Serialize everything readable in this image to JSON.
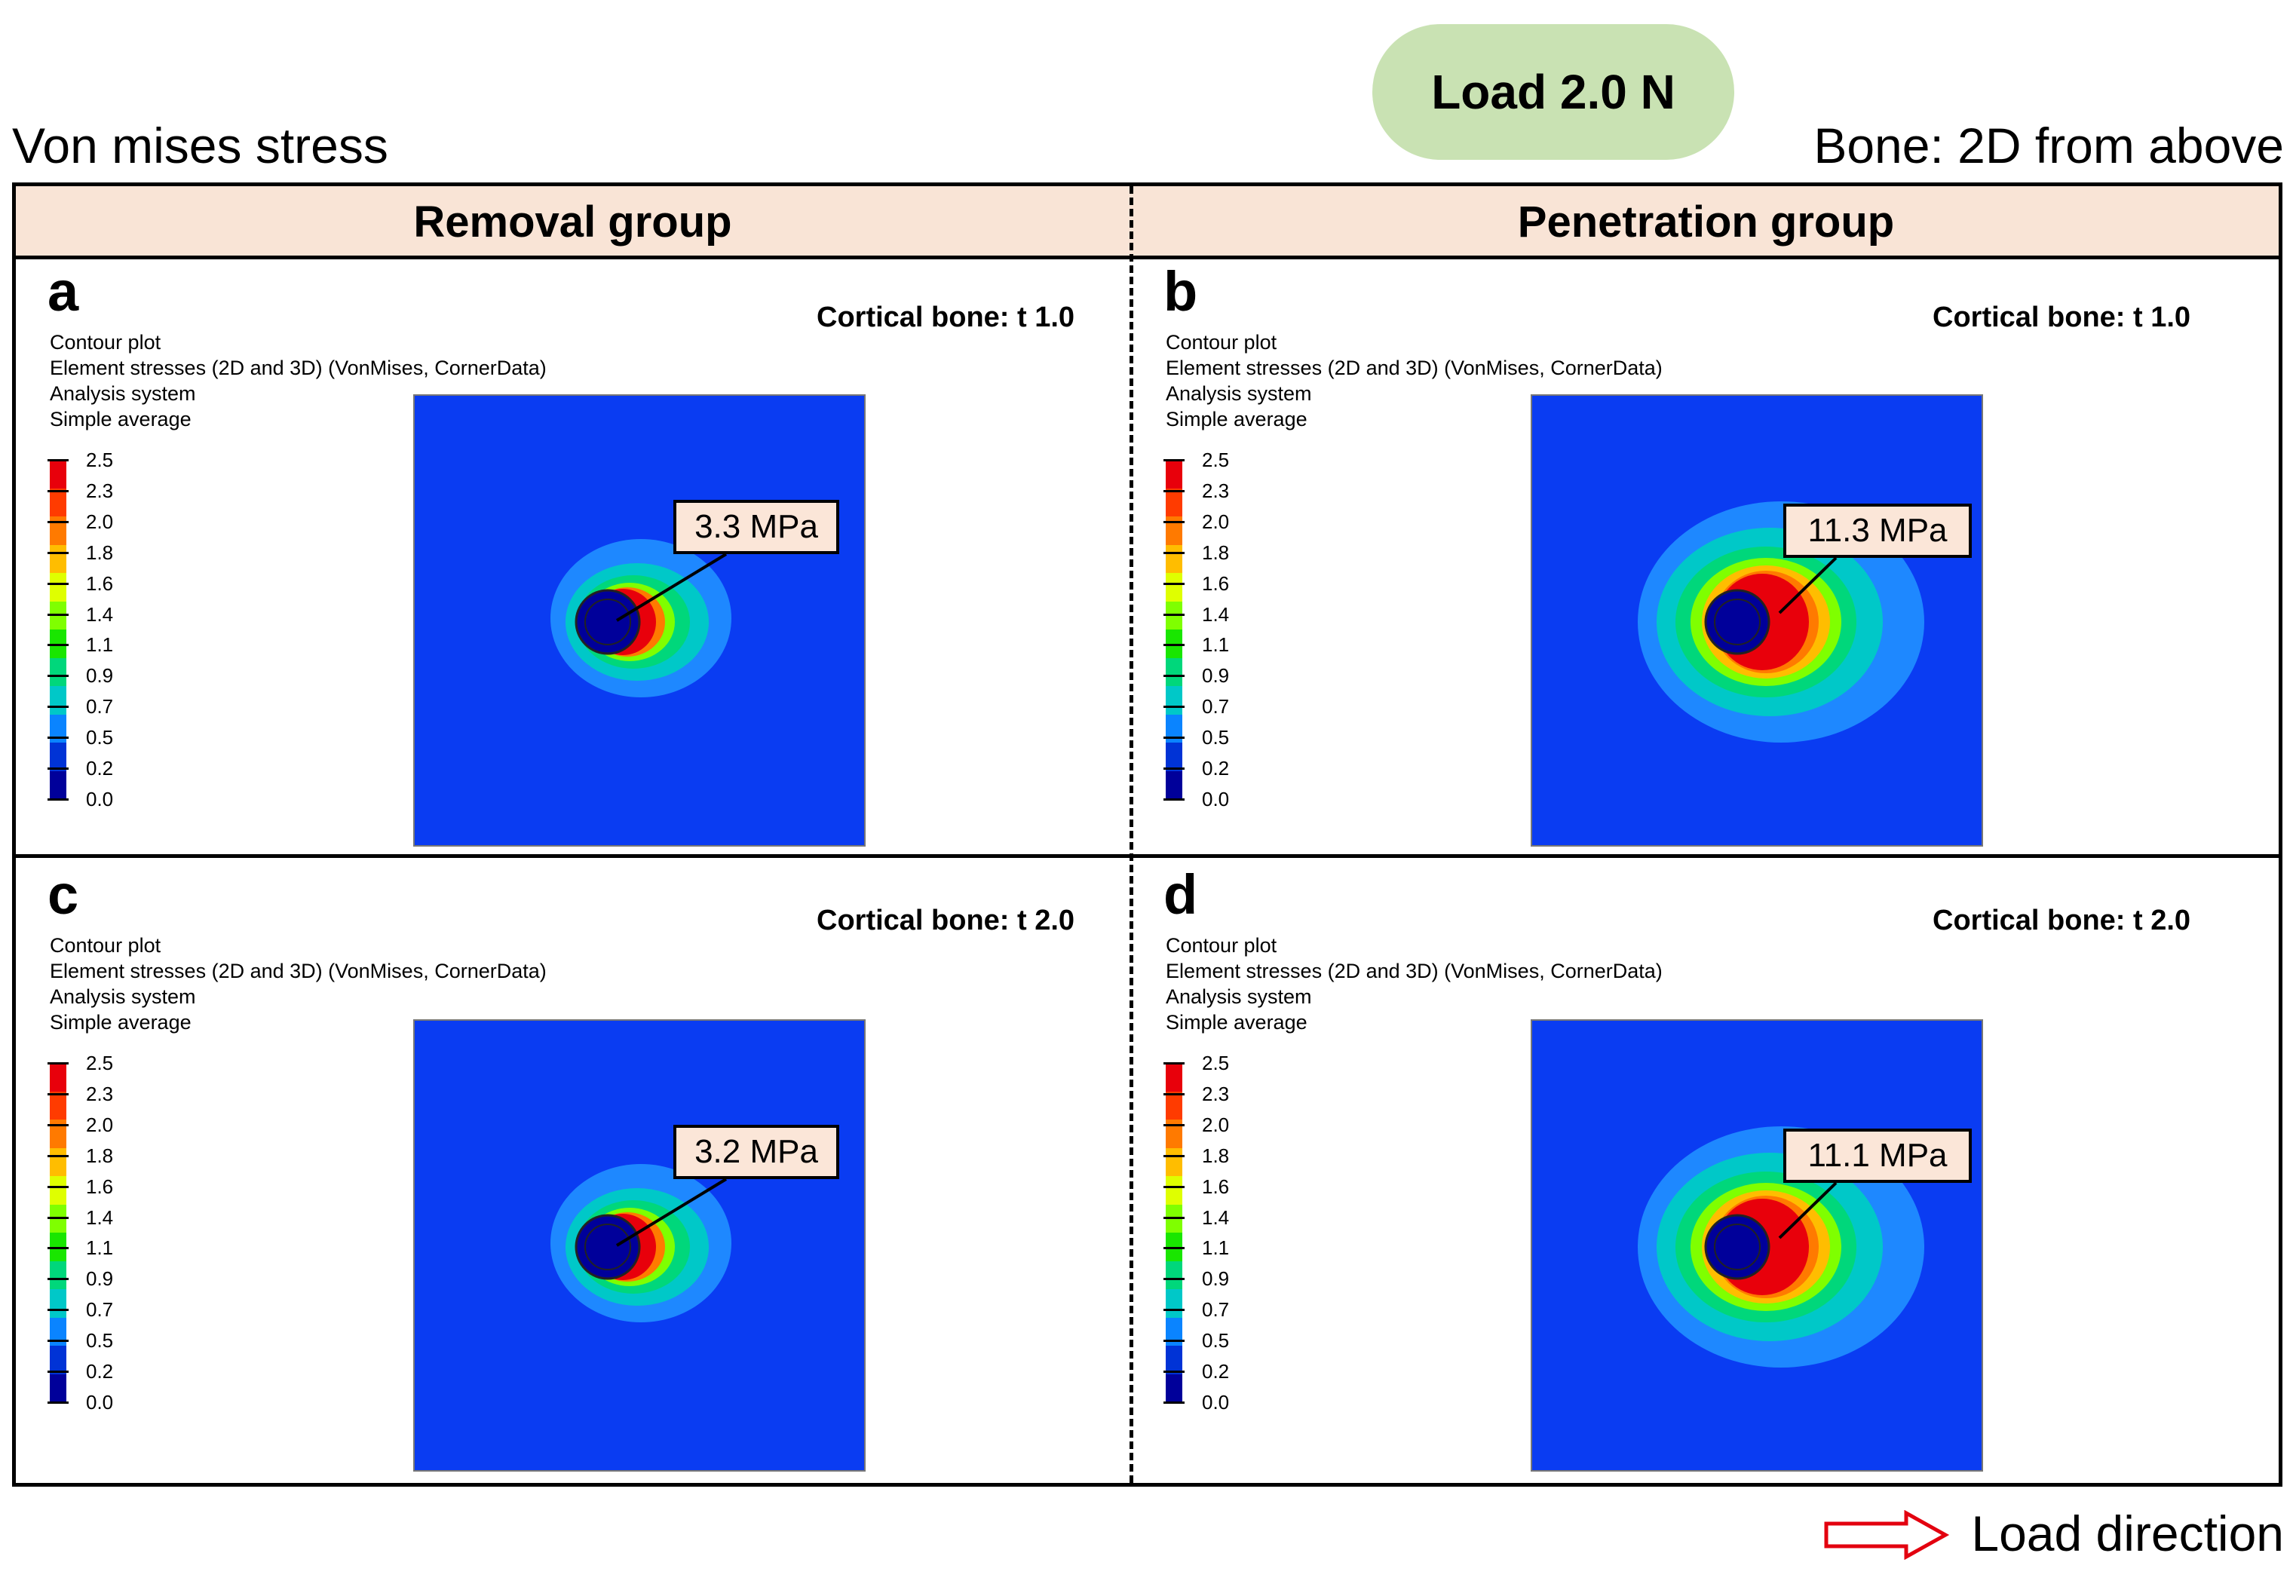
{
  "load_label": "Load 2.0 N",
  "stress_title": "Von mises stress",
  "view_label": "Bone: 2D from above",
  "columns": [
    "Removal group",
    "Penetration group"
  ],
  "info_lines": [
    "Contour plot",
    "Element stresses (2D and 3D) (VonMises, CornerData)",
    "Analysis system",
    "Simple average"
  ],
  "legend_values": [
    "2.5",
    "2.3",
    "2.0",
    "1.8",
    "1.6",
    "1.4",
    "1.1",
    "0.9",
    "0.7",
    "0.5",
    "0.2",
    "0.0"
  ],
  "legend_colors": [
    "#e8000b",
    "#ff3b00",
    "#ff7a00",
    "#ffbd00",
    "#dfff00",
    "#7fff00",
    "#19e600",
    "#00d77b",
    "#00c8c8",
    "#0a84ff",
    "#0033d6",
    "#00009a"
  ],
  "panels": [
    {
      "letter": "a",
      "cortical": "Cortical bone: t 1.0",
      "max_stress": "3.3 MPa"
    },
    {
      "letter": "b",
      "cortical": "Cortical bone: t 1.0",
      "max_stress": "11.3 MPa"
    },
    {
      "letter": "c",
      "cortical": "Cortical bone: t 2.0",
      "max_stress": "3.2 MPa"
    },
    {
      "letter": "d",
      "cortical": "Cortical bone: t 2.0",
      "max_stress": "11.1 MPa"
    }
  ],
  "load_direction_label": "Load direction",
  "colors": {
    "header_bg": "#f9e4d6",
    "load_pill": "#c9e2b3",
    "plot_bg": "#0a3cf2",
    "arrow": "#e3000f"
  }
}
